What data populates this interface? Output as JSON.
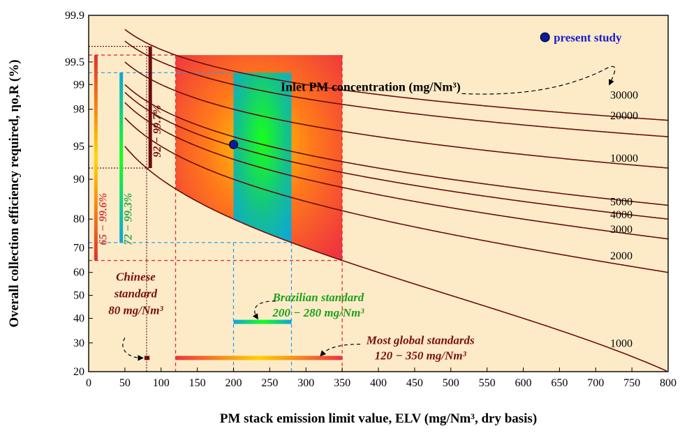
{
  "chart_data": {
    "type": "line",
    "xlabel": "PM stack emission limit value, ELV (mg/Nm³, dry basis)",
    "ylabel": "Overall collection efficiency required, ηo,R (%)",
    "xlim": [
      0,
      800
    ],
    "ylim": [
      20,
      99.9
    ],
    "yscale": "probit",
    "x_ticks": [
      "0",
      "50",
      "100",
      "150",
      "200",
      "250",
      "300",
      "350",
      "400",
      "450",
      "500",
      "550",
      "600",
      "650",
      "700",
      "750",
      "800"
    ],
    "y_ticks": [
      {
        "v": 20,
        "label": "20"
      },
      {
        "v": 30,
        "label": "30"
      },
      {
        "v": 40,
        "label": "40"
      },
      {
        "v": 50,
        "label": "50"
      },
      {
        "v": 60,
        "label": "60"
      },
      {
        "v": 70,
        "label": "70"
      },
      {
        "v": 80,
        "label": "80"
      },
      {
        "v": 90,
        "label": "90"
      },
      {
        "v": 95,
        "label": "95"
      },
      {
        "v": 98,
        "label": "98"
      },
      {
        "v": 99,
        "label": "99"
      },
      {
        "v": 99.5,
        "label": "99.5"
      },
      {
        "v": 99.9,
        "label": "99.9"
      }
    ],
    "series": [
      {
        "name": "30000",
        "inlet": 30000
      },
      {
        "name": "20000",
        "inlet": 20000
      },
      {
        "name": "10000",
        "inlet": 10000
      },
      {
        "name": "5000",
        "inlet": 5000
      },
      {
        "name": "4000",
        "inlet": 4000
      },
      {
        "name": "3000",
        "inlet": 3000
      },
      {
        "name": "2000",
        "inlet": 2000
      },
      {
        "name": "1000",
        "inlet": 1000
      }
    ],
    "legend_title": "Inlet PM concentration (mg/Nm³)",
    "legend": {
      "label": "present study",
      "point": {
        "x": 200,
        "y": 95.2
      }
    },
    "regions": {
      "most_global": {
        "x": [
          120,
          350
        ],
        "y": [
          65,
          99.6
        ]
      },
      "brazilian": {
        "x": [
          200,
          280
        ],
        "y": [
          72,
          99.3
        ]
      }
    },
    "range_bars": [
      {
        "label": "65 − 99.6%",
        "x": 10,
        "y": [
          65,
          99.6
        ],
        "color": "#d83a3a"
      },
      {
        "label": "72 − 99.3%",
        "x": 45,
        "y": [
          72,
          99.3
        ],
        "color": "#2aa84a"
      },
      {
        "label": "92 − 99.7%",
        "x": 85,
        "y": [
          92,
          99.7
        ],
        "color": "#7a0f0f"
      }
    ],
    "annotations": {
      "chinese": {
        "lines": [
          "Chinese",
          "standard",
          "80 mg/Nm³"
        ],
        "color": "#7a0f0f"
      },
      "brazilian": {
        "lines": [
          "Brazilian standard",
          "200 − 280 mg/Nm³"
        ],
        "color": "#1ea01e"
      },
      "global": {
        "lines": [
          "Most global standards",
          "120 − 350 mg/Nm³"
        ],
        "color": "#7a0f0f"
      }
    },
    "colors": {
      "background": "#fdebc8",
      "curve": "#6b0d0d",
      "point": "#0a1a9c",
      "legend_text": "#1a1acc"
    }
  }
}
